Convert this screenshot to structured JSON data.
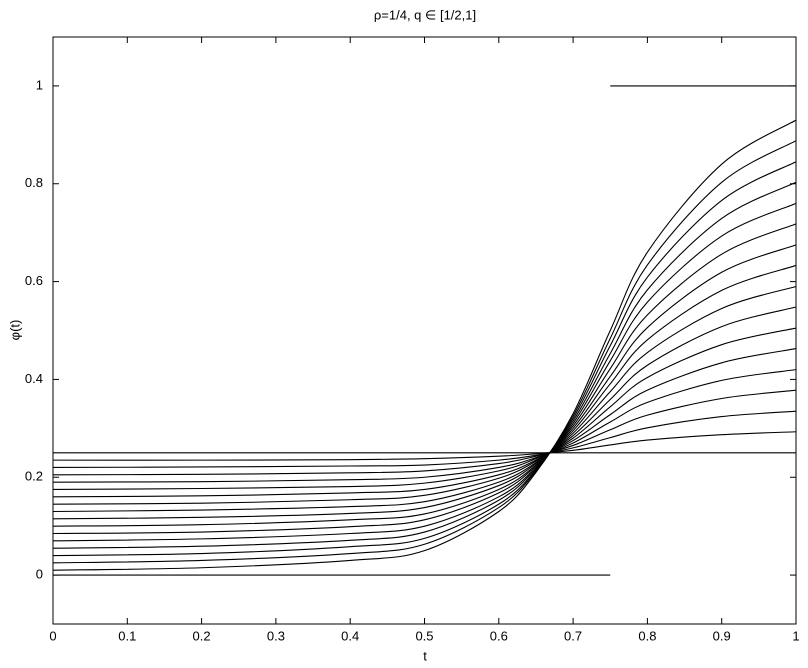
{
  "chart_data": {
    "type": "line",
    "title": "ρ=1/4, q ∈ [1/2,1]",
    "xlabel": "t",
    "ylabel": "φ(t)",
    "x": [
      0,
      0.2,
      0.4,
      0.5,
      0.6,
      0.65,
      0.7,
      0.75,
      0.8,
      0.9,
      1
    ],
    "xlim": [
      0,
      1
    ],
    "ylim": [
      -0.1,
      1.1
    ],
    "xticks": [
      0,
      0.1,
      0.2,
      0.3,
      0.4,
      0.5,
      0.6,
      0.7,
      0.8,
      0.9,
      1
    ],
    "yticks": [
      0,
      0.2,
      0.4,
      0.6,
      0.8,
      1
    ],
    "grid": false,
    "series": [
      {
        "color": "#000000",
        "x": [
          0,
          0.75,
          0.75,
          0.75,
          1
        ],
        "values": [
          0,
          0,
          null,
          1,
          1
        ]
      },
      {
        "color": "#000000",
        "values": [
          0.01,
          0.015,
          0.03,
          0.05,
          0.13,
          0.21,
          0.33,
          0.5,
          0.66,
          0.84,
          0.93
        ]
      },
      {
        "color": "#000000",
        "values": [
          0.025,
          0.03,
          0.044,
          0.063,
          0.138,
          0.213,
          0.325,
          0.484,
          0.634,
          0.803,
          0.888
        ]
      },
      {
        "color": "#000000",
        "values": [
          0.04,
          0.044,
          0.058,
          0.075,
          0.145,
          0.215,
          0.32,
          0.469,
          0.609,
          0.766,
          0.845
        ]
      },
      {
        "color": "#000000",
        "values": [
          0.055,
          0.059,
          0.071,
          0.088,
          0.153,
          0.218,
          0.315,
          0.453,
          0.583,
          0.729,
          0.803
        ]
      },
      {
        "color": "#000000",
        "values": [
          0.07,
          0.074,
          0.085,
          0.1,
          0.16,
          0.22,
          0.31,
          0.438,
          0.558,
          0.693,
          0.76
        ]
      },
      {
        "color": "#000000",
        "values": [
          0.085,
          0.088,
          0.099,
          0.113,
          0.168,
          0.223,
          0.305,
          0.422,
          0.532,
          0.656,
          0.718
        ]
      },
      {
        "color": "#000000",
        "values": [
          0.1,
          0.103,
          0.113,
          0.125,
          0.175,
          0.225,
          0.3,
          0.406,
          0.506,
          0.619,
          0.675
        ]
      },
      {
        "color": "#000000",
        "values": [
          0.115,
          0.118,
          0.126,
          0.138,
          0.183,
          0.228,
          0.295,
          0.391,
          0.481,
          0.582,
          0.633
        ]
      },
      {
        "color": "#000000",
        "values": [
          0.13,
          0.133,
          0.14,
          0.15,
          0.19,
          0.23,
          0.29,
          0.375,
          0.455,
          0.545,
          0.59
        ]
      },
      {
        "color": "#000000",
        "values": [
          0.145,
          0.147,
          0.154,
          0.163,
          0.198,
          0.233,
          0.285,
          0.359,
          0.429,
          0.508,
          0.548
        ]
      },
      {
        "color": "#000000",
        "values": [
          0.16,
          0.162,
          0.168,
          0.175,
          0.205,
          0.235,
          0.28,
          0.344,
          0.404,
          0.471,
          0.505
        ]
      },
      {
        "color": "#000000",
        "values": [
          0.175,
          0.177,
          0.181,
          0.188,
          0.213,
          0.238,
          0.275,
          0.328,
          0.378,
          0.434,
          0.463
        ]
      },
      {
        "color": "#000000",
        "values": [
          0.19,
          0.191,
          0.195,
          0.2,
          0.22,
          0.24,
          0.27,
          0.313,
          0.353,
          0.398,
          0.42
        ]
      },
      {
        "color": "#000000",
        "values": [
          0.205,
          0.206,
          0.209,
          0.213,
          0.228,
          0.243,
          0.265,
          0.297,
          0.327,
          0.361,
          0.378
        ]
      },
      {
        "color": "#000000",
        "values": [
          0.22,
          0.221,
          0.223,
          0.225,
          0.235,
          0.245,
          0.26,
          0.281,
          0.301,
          0.324,
          0.335
        ]
      },
      {
        "color": "#000000",
        "values": [
          0.235,
          0.235,
          0.236,
          0.238,
          0.243,
          0.248,
          0.255,
          0.266,
          0.276,
          0.287,
          0.293
        ]
      },
      {
        "color": "#000000",
        "values": [
          0.25,
          0.25,
          0.25,
          0.25,
          0.25,
          0.25,
          0.25,
          0.25,
          0.25,
          0.25,
          0.25
        ]
      }
    ]
  }
}
